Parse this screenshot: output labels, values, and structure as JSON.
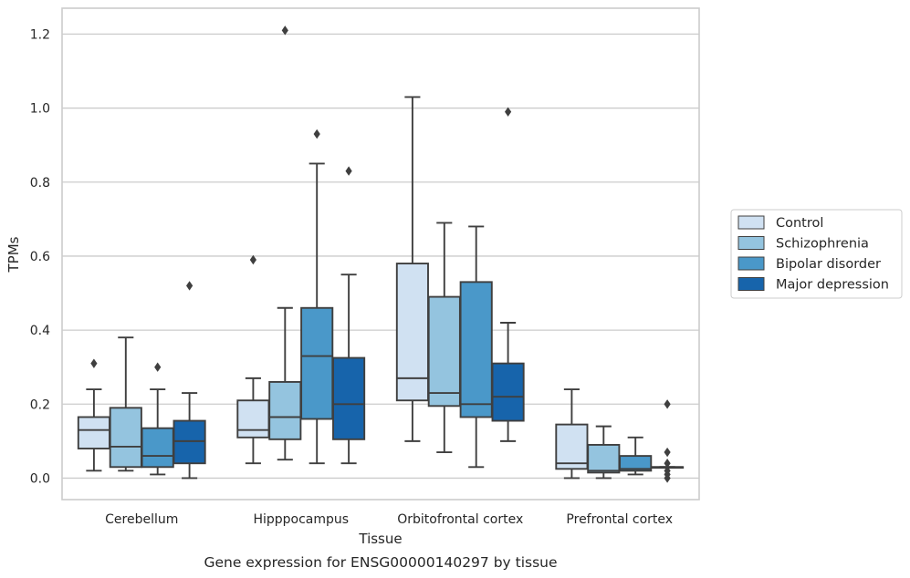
{
  "chart_data": {
    "type": "box",
    "title": "",
    "caption": "Gene expression for ENSG00000140297 by tissue",
    "xlabel": "Tissue",
    "ylabel": "TPMs",
    "ylim": [
      -0.058,
      1.27
    ],
    "yticks": [
      "0.0",
      "0.2",
      "0.4",
      "0.6",
      "0.8",
      "1.0",
      "1.2"
    ],
    "grid": "horizontal",
    "legend_position": "outside-right",
    "categories": [
      "Cerebellum",
      "Hipppocampus",
      "Orbitofrontal cortex",
      "Prefrontal cortex"
    ],
    "series": [
      {
        "name": "Control",
        "color": "#d0e1f2",
        "boxes": [
          {
            "whislo": 0.02,
            "q1": 0.08,
            "med": 0.13,
            "q3": 0.165,
            "whishi": 0.24,
            "fliers": [
              0.31
            ]
          },
          {
            "whislo": 0.04,
            "q1": 0.11,
            "med": 0.13,
            "q3": 0.21,
            "whishi": 0.27,
            "fliers": [
              0.59
            ]
          },
          {
            "whislo": 0.1,
            "q1": 0.21,
            "med": 0.27,
            "q3": 0.58,
            "whishi": 1.03,
            "fliers": []
          },
          {
            "whislo": 0.0,
            "q1": 0.025,
            "med": 0.04,
            "q3": 0.145,
            "whishi": 0.24,
            "fliers": []
          }
        ]
      },
      {
        "name": "Schizophrenia",
        "color": "#94c4df",
        "boxes": [
          {
            "whislo": 0.02,
            "q1": 0.03,
            "med": 0.085,
            "q3": 0.19,
            "whishi": 0.38,
            "fliers": []
          },
          {
            "whislo": 0.05,
            "q1": 0.105,
            "med": 0.165,
            "q3": 0.26,
            "whishi": 0.46,
            "fliers": [
              1.21
            ]
          },
          {
            "whislo": 0.07,
            "q1": 0.195,
            "med": 0.23,
            "q3": 0.49,
            "whishi": 0.69,
            "fliers": []
          },
          {
            "whislo": 0.0,
            "q1": 0.015,
            "med": 0.02,
            "q3": 0.09,
            "whishi": 0.14,
            "fliers": []
          }
        ]
      },
      {
        "name": "Bipolar disorder",
        "color": "#4a98c9",
        "boxes": [
          {
            "whislo": 0.01,
            "q1": 0.03,
            "med": 0.06,
            "q3": 0.135,
            "whishi": 0.24,
            "fliers": [
              0.3
            ]
          },
          {
            "whislo": 0.04,
            "q1": 0.16,
            "med": 0.33,
            "q3": 0.46,
            "whishi": 0.85,
            "fliers": [
              0.93
            ]
          },
          {
            "whislo": 0.03,
            "q1": 0.165,
            "med": 0.2,
            "q3": 0.53,
            "whishi": 0.68,
            "fliers": []
          },
          {
            "whislo": 0.01,
            "q1": 0.02,
            "med": 0.025,
            "q3": 0.06,
            "whishi": 0.11,
            "fliers": []
          }
        ]
      },
      {
        "name": "Major depression",
        "color": "#1764ab",
        "boxes": [
          {
            "whislo": 0.0,
            "q1": 0.04,
            "med": 0.1,
            "q3": 0.155,
            "whishi": 0.23,
            "fliers": [
              0.52
            ]
          },
          {
            "whislo": 0.04,
            "q1": 0.105,
            "med": 0.2,
            "q3": 0.325,
            "whishi": 0.55,
            "fliers": [
              0.83
            ]
          },
          {
            "whislo": 0.1,
            "q1": 0.155,
            "med": 0.22,
            "q3": 0.31,
            "whishi": 0.42,
            "fliers": [
              0.99
            ]
          },
          {
            "whislo": 0.03,
            "q1": 0.03,
            "med": 0.03,
            "q3": 0.03,
            "whishi": 0.03,
            "fliers": [
              0.0,
              0.01,
              0.02,
              0.04,
              0.07,
              0.2
            ]
          }
        ]
      }
    ]
  }
}
